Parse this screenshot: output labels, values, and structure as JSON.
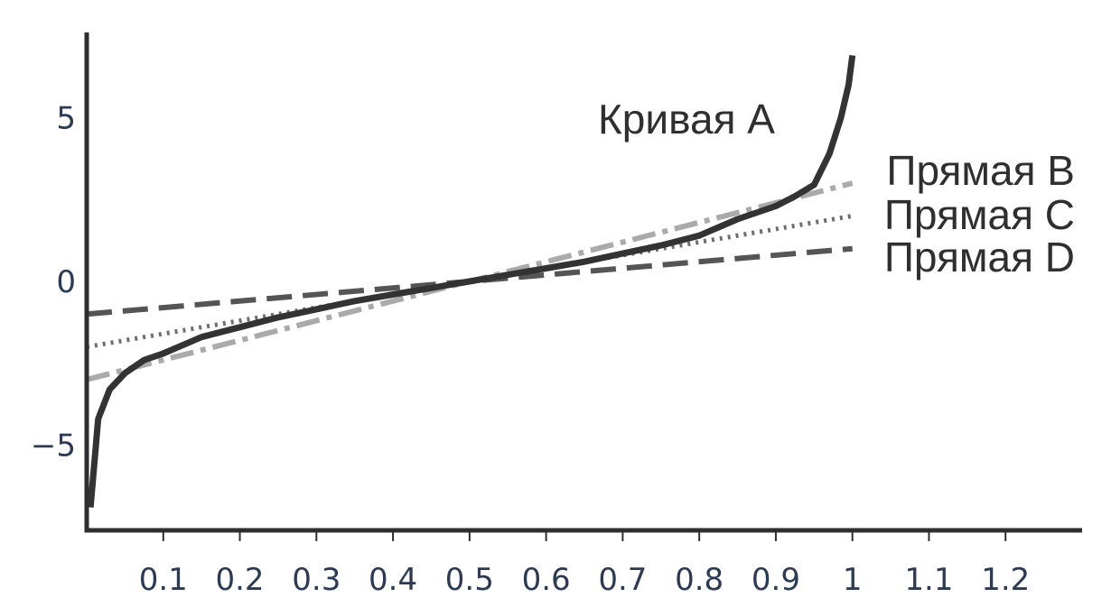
{
  "chart_data": {
    "type": "line",
    "title": "",
    "xlabel": "",
    "ylabel": "",
    "xlim": [
      0,
      1.3
    ],
    "ylim": [
      -7.6,
      7.6
    ],
    "grid": false,
    "x_ticks": [
      {
        "value": 0.1,
        "label": "0.1"
      },
      {
        "value": 0.2,
        "label": "0.2"
      },
      {
        "value": 0.3,
        "label": "0.3"
      },
      {
        "value": 0.4,
        "label": "0.4"
      },
      {
        "value": 0.5,
        "label": "0.5"
      },
      {
        "value": 0.6,
        "label": "0.6"
      },
      {
        "value": 0.7,
        "label": "0.7"
      },
      {
        "value": 0.8,
        "label": "0.8"
      },
      {
        "value": 0.9,
        "label": "0.9"
      },
      {
        "value": 1.0,
        "label": "1"
      },
      {
        "value": 1.1,
        "label": "1.1"
      },
      {
        "value": 1.2,
        "label": "1.2"
      }
    ],
    "y_ticks": [
      {
        "value": 5,
        "label": "5"
      },
      {
        "value": 0,
        "label": "0"
      },
      {
        "value": -5,
        "label": "−5"
      }
    ],
    "series": [
      {
        "name": "Кривая A",
        "color": "#333333",
        "dash": "solid",
        "x": [
          0.005,
          0.015,
          0.03,
          0.05,
          0.075,
          0.1,
          0.15,
          0.2,
          0.25,
          0.3,
          0.35,
          0.4,
          0.45,
          0.5,
          0.55,
          0.6,
          0.65,
          0.7,
          0.75,
          0.8,
          0.85,
          0.9,
          0.925,
          0.95,
          0.97,
          0.985,
          0.995,
          1.0
        ],
        "y": [
          -6.9,
          -4.2,
          -3.3,
          -2.8,
          -2.4,
          -2.2,
          -1.7,
          -1.4,
          -1.1,
          -0.85,
          -0.6,
          -0.4,
          -0.2,
          0.0,
          0.2,
          0.4,
          0.6,
          0.85,
          1.1,
          1.4,
          1.9,
          2.3,
          2.6,
          2.95,
          3.9,
          5.0,
          6.0,
          6.9
        ]
      },
      {
        "name": "Прямая B",
        "color": "#aaaaaa",
        "dash": "dashdot",
        "x": [
          0.0,
          1.0
        ],
        "y": [
          -3.0,
          3.0
        ]
      },
      {
        "name": "Прямая C",
        "color": "#6e6e6e",
        "dash": "dotted",
        "x": [
          0.0,
          1.0
        ],
        "y": [
          -2.0,
          2.0
        ]
      },
      {
        "name": "Прямая D",
        "color": "#555555",
        "dash": "dashed",
        "x": [
          0.0,
          1.0
        ],
        "y": [
          -1.0,
          1.0
        ]
      }
    ],
    "annotations": [
      {
        "series": "Кривая A",
        "text": "Кривая A"
      },
      {
        "series": "Прямая B",
        "text": "Прямая B"
      },
      {
        "series": "Прямая C",
        "text": "Прямая C"
      },
      {
        "series": "Прямая D",
        "text": "Прямая D"
      }
    ]
  }
}
